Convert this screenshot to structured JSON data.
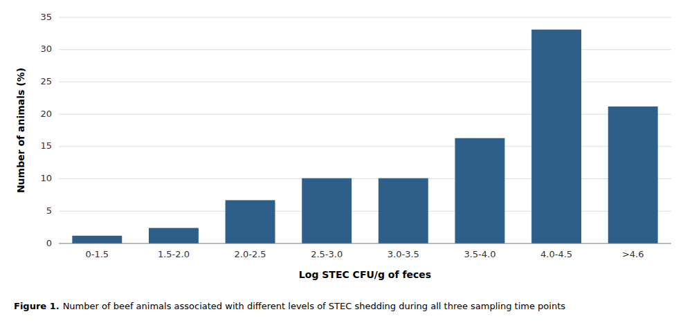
{
  "chart_data": {
    "type": "bar",
    "categories": [
      "0-1.5",
      "1.5-2.0",
      "2.0-2.5",
      "2.5-3.0",
      "3.0-3.5",
      "3.5-4.0",
      "4.0-4.5",
      ">4.6"
    ],
    "values": [
      1.2,
      2.4,
      6.7,
      10.1,
      10.1,
      16.3,
      33.1,
      21.2
    ],
    "color": "#2E5F8A",
    "xlabel": "Log STEC CFU/g of feces",
    "ylabel": "Number of animals (%)",
    "ylim": [
      0,
      35
    ],
    "yticks": [
      0,
      5,
      10,
      15,
      20,
      25,
      30,
      35
    ],
    "grid": true,
    "annotations": [
      {
        "text": "Figure 1."
      },
      {
        "text": "Number of beef animals associated with different levels of STEC shedding during all three sampling time points"
      }
    ]
  }
}
